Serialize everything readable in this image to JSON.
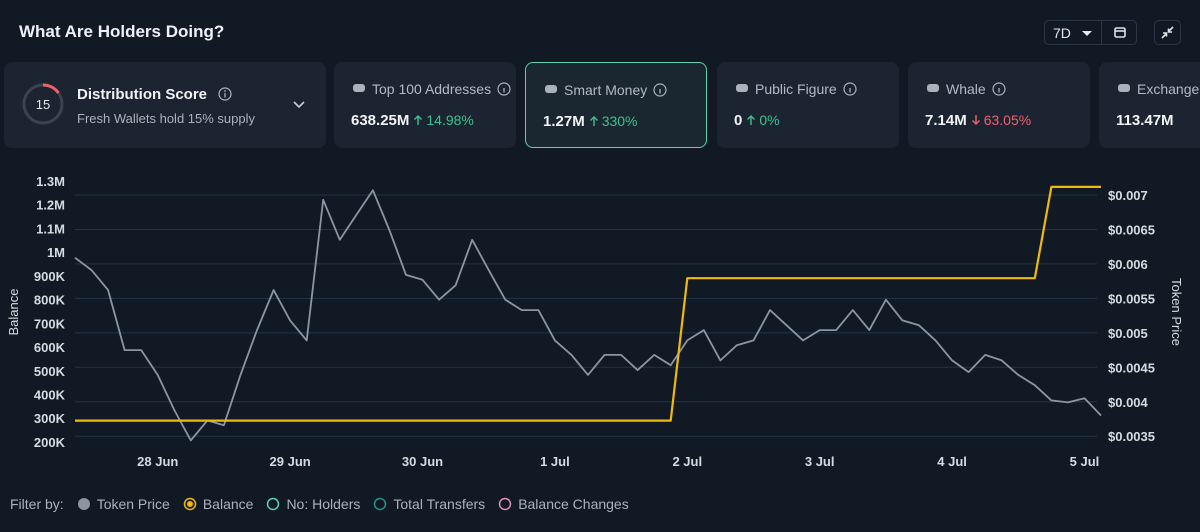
{
  "header": {
    "title": "What Are Holders Doing?",
    "range": "7D"
  },
  "distribution": {
    "score": 15,
    "title": "Distribution Score",
    "subtitle": "Fresh Wallets hold 15% supply"
  },
  "cards": [
    {
      "label": "Top 100 Addresses",
      "value": "638.25M",
      "change": "14.98%",
      "direction": "up"
    },
    {
      "label": "Smart Money",
      "value": "1.27M",
      "change": "330%",
      "direction": "up",
      "selected": true
    },
    {
      "label": "Public Figure",
      "value": "0",
      "change": "0%",
      "direction": "up"
    },
    {
      "label": "Whale",
      "value": "7.14M",
      "change": "63.05%",
      "direction": "down"
    },
    {
      "label": "Exchange",
      "value": "113.47M"
    }
  ],
  "chart_data": {
    "type": "line",
    "categories": [
      null,
      null,
      null,
      null,
      null,
      "28 Jun",
      null,
      null,
      null,
      null,
      null,
      null,
      null,
      "29 Jun",
      null,
      null,
      null,
      null,
      null,
      null,
      null,
      "30 Jun",
      null,
      null,
      null,
      null,
      null,
      null,
      null,
      "1 Jul",
      null,
      null,
      null,
      null,
      null,
      null,
      null,
      "2 Jul",
      null,
      null,
      null,
      null,
      null,
      null,
      null,
      "3 Jul",
      null,
      null,
      null,
      null,
      null,
      null,
      null,
      "4 Jul",
      null,
      null,
      null,
      null,
      null,
      null,
      null,
      "5 Jul",
      null
    ],
    "series": [
      {
        "name": "Token Price",
        "color": "#8b96a2",
        "axis": "y2",
        "values": [
          0.00609,
          0.00591,
          0.00562,
          0.00475,
          0.00475,
          0.00439,
          0.00388,
          0.00344,
          0.00373,
          0.00366,
          0.00439,
          0.00504,
          0.00562,
          0.00518,
          0.00489,
          0.00693,
          0.00635,
          0.00671,
          0.00707,
          0.00649,
          0.00584,
          0.00577,
          0.00548,
          0.00569,
          0.00635,
          0.00591,
          0.00548,
          0.00533,
          0.00533,
          0.00489,
          0.00468,
          0.00439,
          0.00468,
          0.00468,
          0.00446,
          0.00468,
          0.00453,
          0.00489,
          0.00504,
          0.0046,
          0.00482,
          0.00489,
          0.00533,
          0.00511,
          0.00489,
          0.00504,
          0.00504,
          0.00533,
          0.00504,
          0.00548,
          0.00518,
          0.00511,
          0.00489,
          0.0046,
          0.00443,
          0.00468,
          0.0046,
          0.00439,
          0.00424,
          0.00402,
          0.00399,
          0.00405,
          0.0038
        ]
      },
      {
        "name": "Balance",
        "color": "#f0b90b",
        "axis": "y",
        "values": [
          290000,
          290000,
          290000,
          290000,
          290000,
          290000,
          290000,
          290000,
          290000,
          290000,
          290000,
          290000,
          290000,
          290000,
          290000,
          290000,
          290000,
          290000,
          290000,
          290000,
          290000,
          290000,
          290000,
          290000,
          290000,
          290000,
          290000,
          290000,
          290000,
          290000,
          290000,
          290000,
          290000,
          290000,
          290000,
          290000,
          290000,
          890000,
          890000,
          890000,
          890000,
          890000,
          890000,
          890000,
          890000,
          890000,
          890000,
          890000,
          890000,
          890000,
          890000,
          890000,
          890000,
          890000,
          890000,
          890000,
          890000,
          890000,
          890000,
          1275000,
          1275000,
          1275000,
          1275000
        ]
      }
    ],
    "ylabel": "Balance",
    "y2label": "Token Price",
    "ylim": [
      166000,
      1325000
    ],
    "yticks": [
      {
        "value": 200000,
        "label": "200K"
      },
      {
        "value": 300000,
        "label": "300K"
      },
      {
        "value": 400000,
        "label": "400K"
      },
      {
        "value": 500000,
        "label": "500K"
      },
      {
        "value": 600000,
        "label": "600K"
      },
      {
        "value": 700000,
        "label": "700K"
      },
      {
        "value": 800000,
        "label": "800K"
      },
      {
        "value": 900000,
        "label": "900K"
      },
      {
        "value": 1000000,
        "label": "1M"
      },
      {
        "value": 1100000,
        "label": "1.1M"
      },
      {
        "value": 1200000,
        "label": "1.2M"
      },
      {
        "value": 1300000,
        "label": "1.3M"
      }
    ],
    "y2lim": [
      0.0033,
      0.00729
    ],
    "y2ticks": [
      {
        "value": 0.0035,
        "label": "$0.0035"
      },
      {
        "value": 0.004,
        "label": "$0.004"
      },
      {
        "value": 0.0045,
        "label": "$0.0045"
      },
      {
        "value": 0.005,
        "label": "$0.005"
      },
      {
        "value": 0.0055,
        "label": "$0.0055"
      },
      {
        "value": 0.006,
        "label": "$0.006"
      },
      {
        "value": 0.0065,
        "label": "$0.0065"
      },
      {
        "value": 0.007,
        "label": "$0.007"
      }
    ],
    "grid": true
  },
  "filter": {
    "label": "Filter by:",
    "options": [
      {
        "name": "No: Holders",
        "color": "#5fd0b0"
      },
      {
        "name": "Total Transfers",
        "color": "#2f8f8a"
      },
      {
        "name": "Balance Changes",
        "color": "#e38fb8"
      }
    ]
  }
}
